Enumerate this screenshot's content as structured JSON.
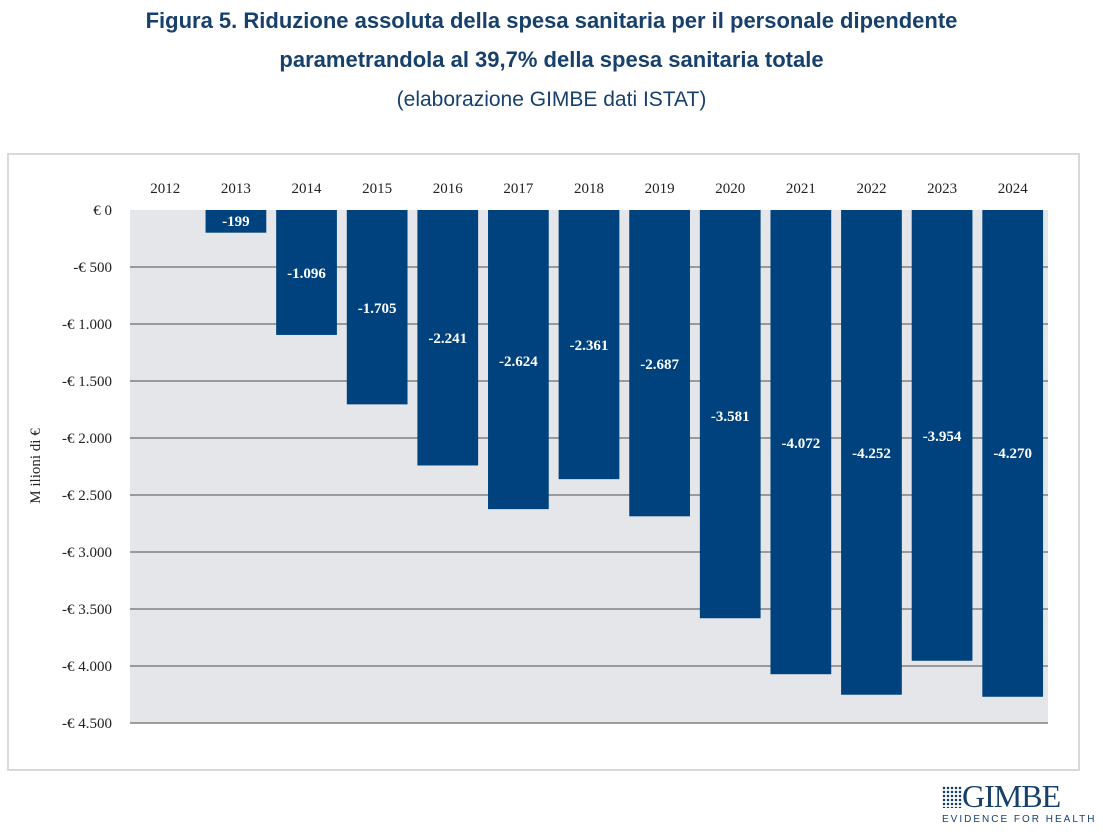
{
  "header": {
    "title_line1": "Figura 5. Riduzione assoluta della spesa sanitaria per il personale dipendente",
    "title_line2": "parametrandola al 39,7% della spesa sanitaria totale",
    "subtitle": "(elaborazione GIMBE dati ISTAT)"
  },
  "logo": {
    "name": "GIMBE",
    "tagline": "EVIDENCE FOR HEALTH"
  },
  "colors": {
    "bar": "#00427d",
    "plot_bg": "#e5e6ea",
    "gridline": "#808080",
    "title": "#17406d"
  },
  "chart_data": {
    "type": "bar",
    "title": "Figura 5. Riduzione assoluta della spesa sanitaria per il personale dipendente parametrandola al 39,7% della spesa sanitaria totale",
    "subtitle": "(elaborazione GIMBE dati ISTAT)",
    "xlabel": "",
    "ylabel": "M ilioni di €",
    "categories": [
      "2012",
      "2013",
      "2014",
      "2015",
      "2016",
      "2017",
      "2018",
      "2019",
      "2020",
      "2021",
      "2022",
      "2023",
      "2024"
    ],
    "values": [
      0,
      -199,
      -1096,
      -1705,
      -2241,
      -2624,
      -2361,
      -2687,
      -3581,
      -4072,
      -4252,
      -3954,
      -4270
    ],
    "data_labels": [
      "",
      "-199",
      "-1.096",
      "-1.705",
      "-2.241",
      "-2.624",
      "-2.361",
      "-2.687",
      "-3.581",
      "-4.072",
      "-4.252",
      "-3.954",
      "-4.270"
    ],
    "ylim": [
      -4500,
      0
    ],
    "yticks": [
      0,
      -500,
      -1000,
      -1500,
      -2000,
      -2500,
      -3000,
      -3500,
      -4000,
      -4500
    ],
    "ytick_labels": [
      "€ 0",
      "-€ 500",
      "-€ 1.000",
      "-€ 1.500",
      "-€ 2.000",
      "-€ 2.500",
      "-€ 3.000",
      "-€ 3.500",
      "-€ 4.000",
      "-€ 4.500"
    ],
    "category_axis_position": "top",
    "grid": true,
    "legend": "none"
  }
}
